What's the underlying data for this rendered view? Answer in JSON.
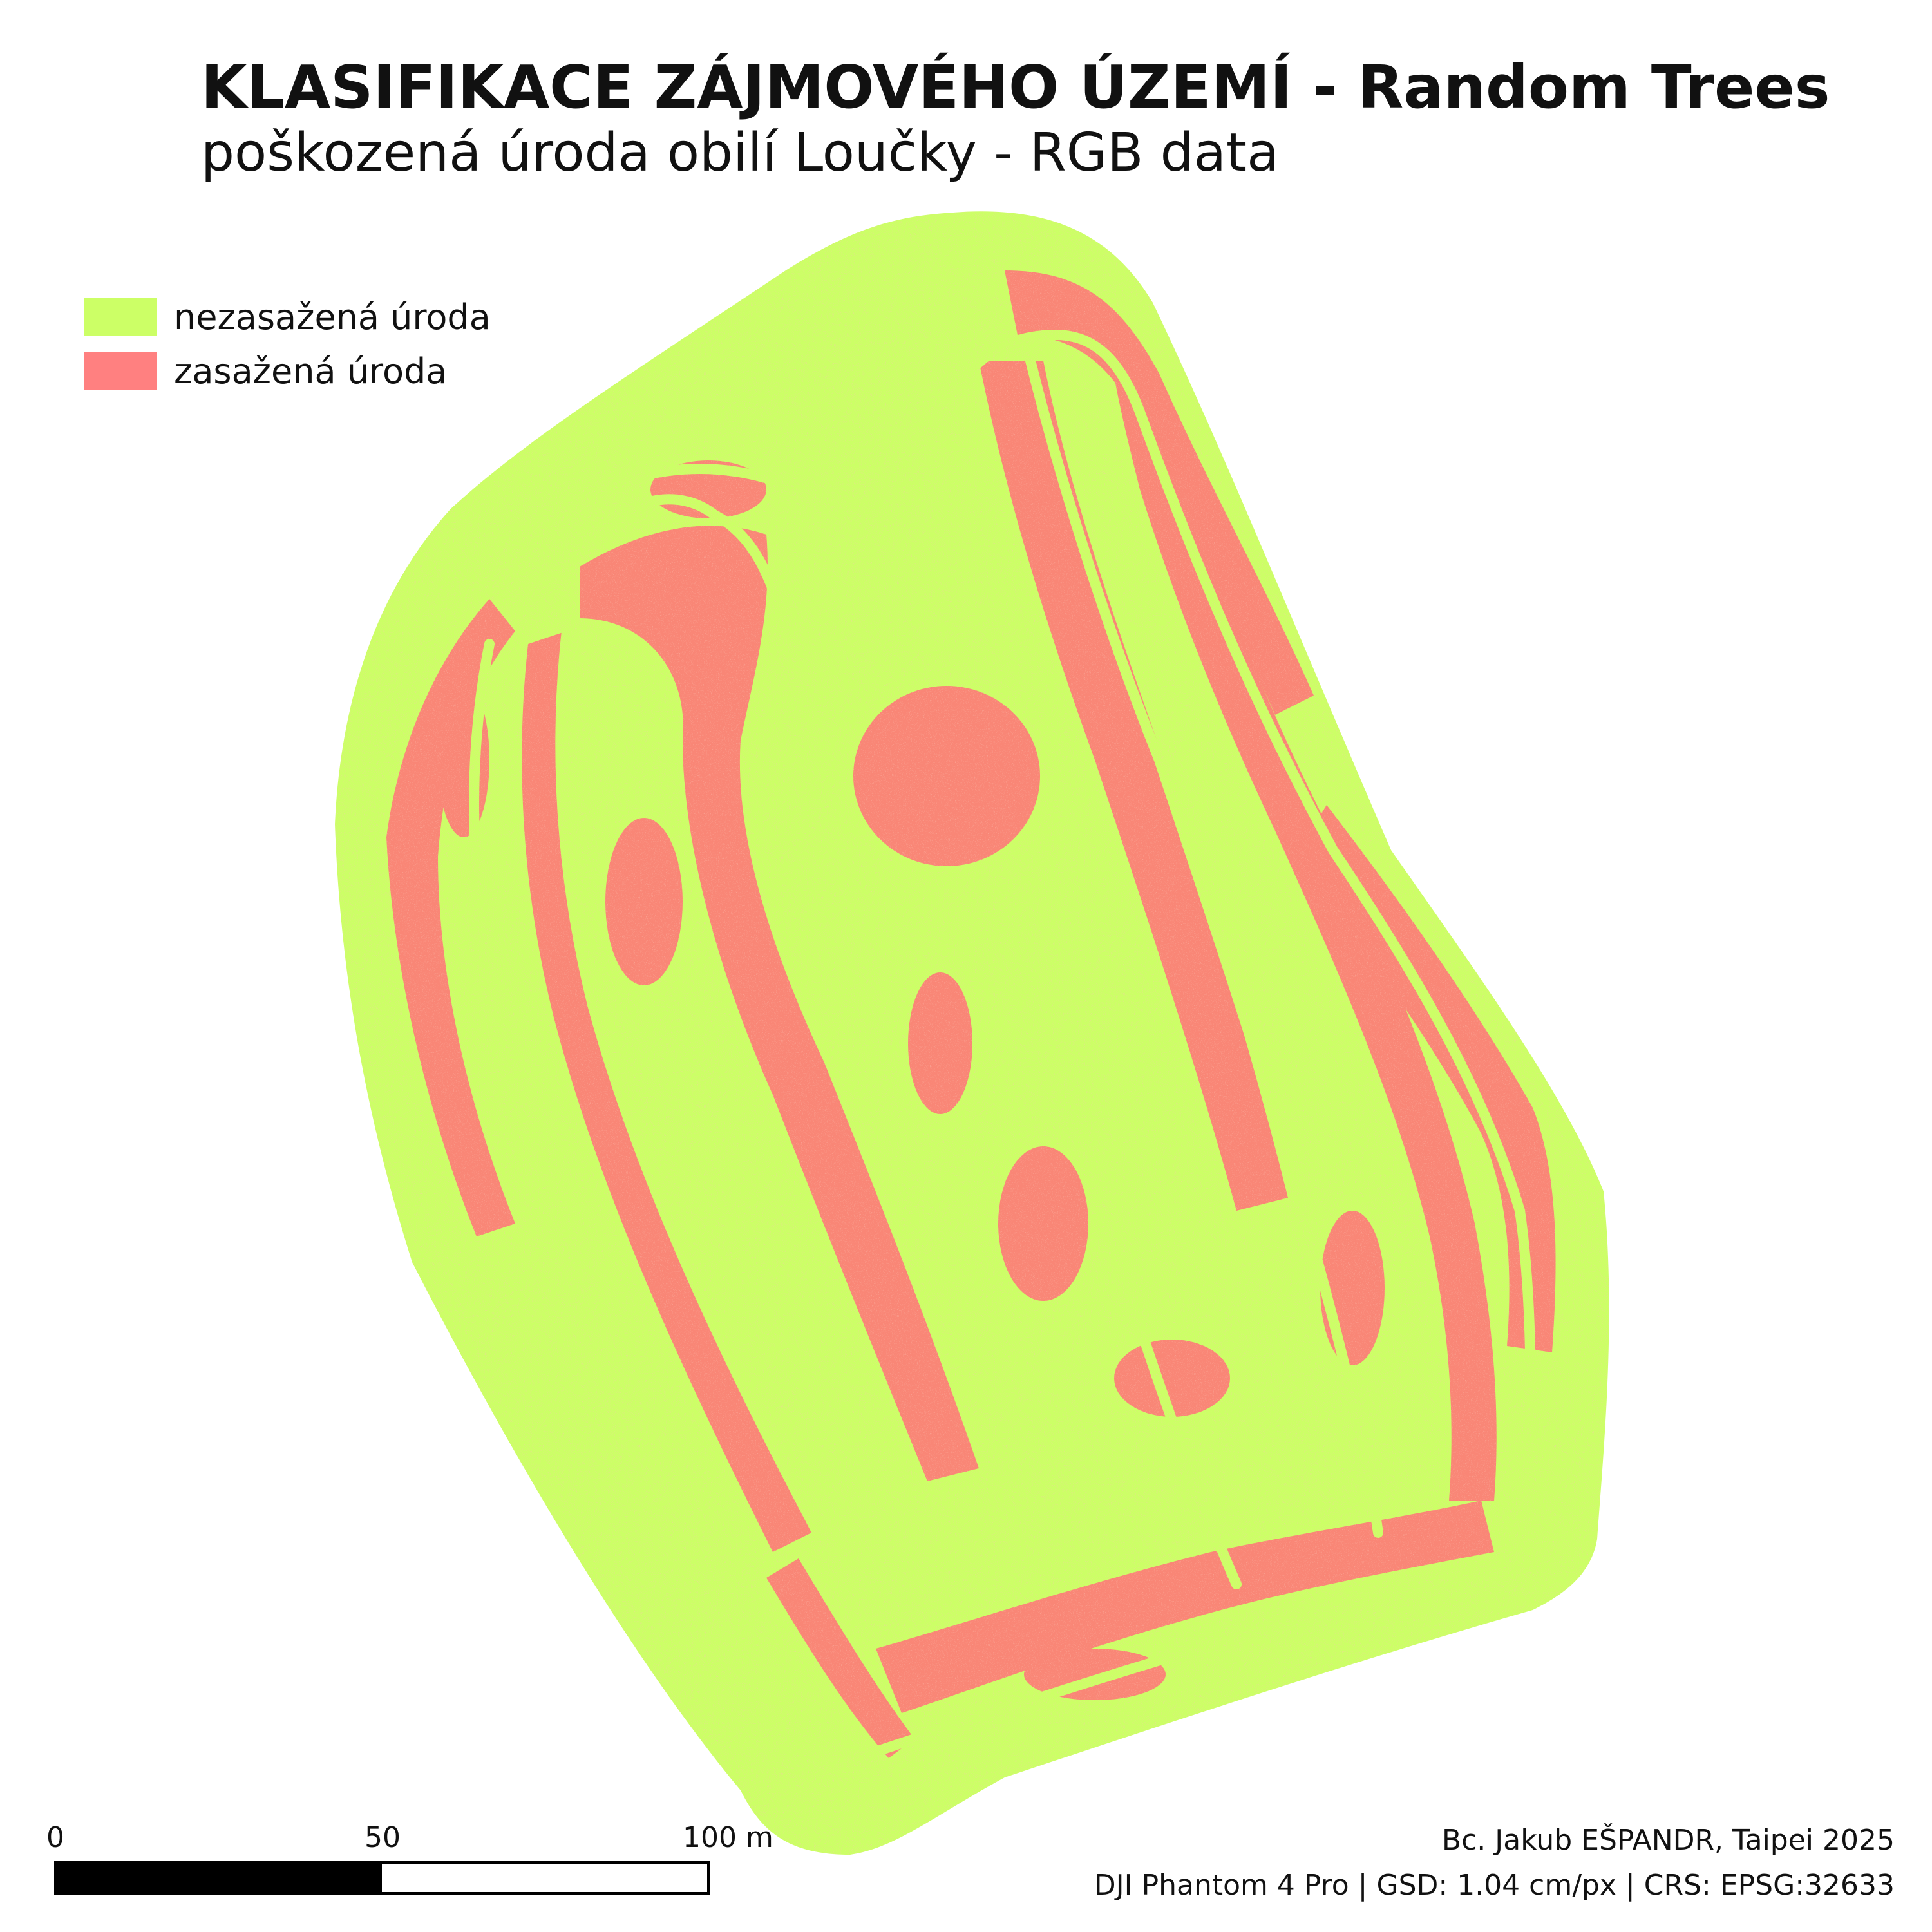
{
  "map": {
    "title": "KLASIFIKACE  ZÁJMOVÉHO ÚZEMÍ - Random Trees",
    "subtitle": "poškozená úroda obilí Loučky - RGB data"
  },
  "legend": [
    {
      "label": "nezasažená úroda",
      "color": "#ccff66"
    },
    {
      "label": "zasažená úroda",
      "color": "#ff8080"
    }
  ],
  "colors": {
    "healthy": "#ccff66",
    "damaged": "#f98676",
    "background": "#ffffff"
  },
  "scale_bar": {
    "labels": [
      "0",
      "50",
      "100 m"
    ],
    "max_value": 100,
    "unit": "m"
  },
  "credits": {
    "author": "Bc. Jakub EŠPANDR, Taipei 2025",
    "meta": "DJI Phantom 4 Pro | GSD: 1.04 cm/px | CRS: EPSG:32633"
  }
}
